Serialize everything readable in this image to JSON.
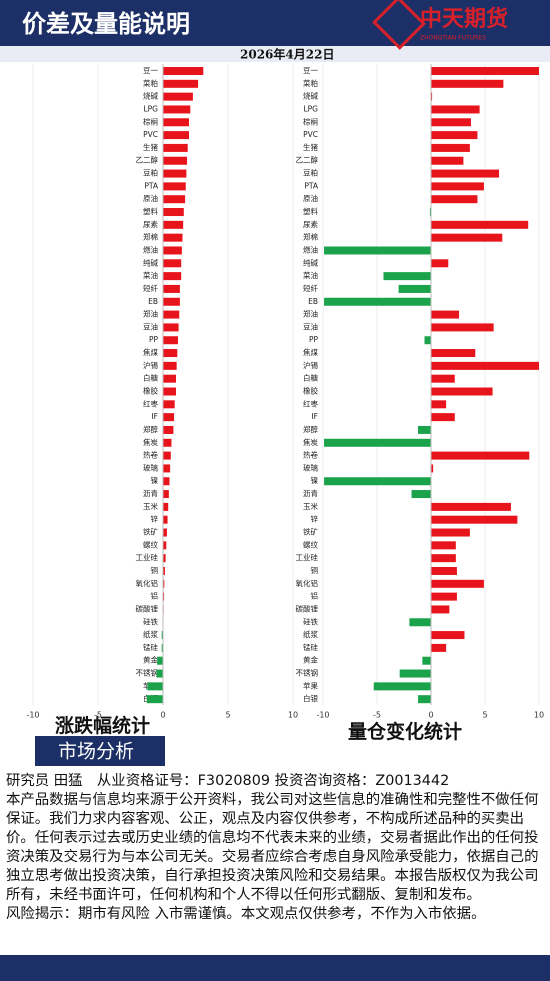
{
  "header": {
    "title": "价差及量能说明",
    "logo": "中天期货",
    "logo_en": "ZHONGTIAN FUTURES",
    "date": "2026年4月22日"
  },
  "chart_data": [
    {
      "type": "hbar",
      "title": "涨跌幅统计",
      "positive_color": "#e8141b",
      "negative_color": "#1aa34a",
      "xlim": [
        -10,
        10
      ],
      "xticks": [
        -10,
        -5,
        0,
        5,
        10
      ],
      "categories": [
        "豆一",
        "菜粕",
        "烧碱",
        "LPG",
        "棕榈",
        "PVC",
        "生猪",
        "乙二醇",
        "豆粕",
        "PTA",
        "原油",
        "塑料",
        "尿素",
        "郑棉",
        "燃油",
        "纯碱",
        "菜油",
        "短纤",
        "EB",
        "郑油",
        "豆油",
        "PP",
        "焦煤",
        "沪锡",
        "白糖",
        "橡胶",
        "红枣",
        "IF",
        "郑醇",
        "焦炭",
        "热卷",
        "玻璃",
        "镍",
        "沥青",
        "玉米",
        "锌",
        "铁矿",
        "螺纹",
        "工业硅",
        "铜",
        "氧化铝",
        "铝",
        "碳酸锂",
        "硅铁",
        "纸浆",
        "锰硅",
        "黄金",
        "不锈钢",
        "苹果",
        "白银"
      ],
      "values": [
        3.1,
        2.7,
        2.3,
        2.1,
        2.0,
        2.0,
        1.9,
        1.85,
        1.8,
        1.75,
        1.7,
        1.6,
        1.55,
        1.5,
        1.45,
        1.4,
        1.4,
        1.3,
        1.3,
        1.25,
        1.2,
        1.15,
        1.1,
        1.05,
        1.0,
        1.0,
        0.9,
        0.85,
        0.8,
        0.65,
        0.6,
        0.55,
        0.5,
        0.45,
        0.4,
        0.35,
        0.3,
        0.25,
        0.2,
        0.15,
        0.1,
        0.08,
        0.05,
        -0.02,
        -0.1,
        -0.1,
        -0.45,
        -0.5,
        -1.2,
        -1.25
      ]
    },
    {
      "type": "hbar",
      "title": "量仓变化统计",
      "positive_color": "#e8141b",
      "negative_color": "#1aa34a",
      "xlim": [
        -10,
        10
      ],
      "xticks": [
        -10,
        -5,
        0,
        5,
        10
      ],
      "categories": [
        "豆一",
        "菜粕",
        "烧碱",
        "LPG",
        "棕榈",
        "PVC",
        "生猪",
        "乙二醇",
        "豆粕",
        "PTA",
        "原油",
        "塑料",
        "尿素",
        "郑棉",
        "燃油",
        "纯碱",
        "菜油",
        "短纤",
        "EB",
        "郑油",
        "豆油",
        "PP",
        "焦煤",
        "沪锡",
        "白糖",
        "橡胶",
        "红枣",
        "IF",
        "郑醇",
        "焦炭",
        "热卷",
        "玻璃",
        "镍",
        "沥青",
        "玉米",
        "锌",
        "铁矿",
        "螺纹",
        "工业硅",
        "铜",
        "氧化铝",
        "铝",
        "碳酸锂",
        "硅铁",
        "纸浆",
        "锰硅",
        "黄金",
        "不锈钢",
        "苹果",
        "白银"
      ],
      "values": [
        10,
        6.7,
        0.1,
        4.5,
        3.7,
        4.3,
        3.6,
        3.0,
        6.3,
        4.9,
        4.3,
        -0.1,
        9.0,
        6.6,
        -9.9,
        1.6,
        -4.4,
        -3.0,
        -9.9,
        2.6,
        5.8,
        -0.6,
        4.1,
        10,
        2.2,
        5.7,
        1.4,
        2.2,
        -1.2,
        -9.9,
        9.1,
        0.2,
        -9.9,
        -1.8,
        7.4,
        8.0,
        3.6,
        2.3,
        2.3,
        2.4,
        4.9,
        2.4,
        1.7,
        -2.0,
        3.1,
        1.4,
        -0.8,
        -2.9,
        -5.3,
        -1.2
      ]
    }
  ],
  "footer": {
    "section": "市场分析",
    "lines": [
      "研究员 田猛　从业资格证号：F3020809 投资咨询资格：Z0013442",
      "本产品数据与信息均来源于公开资料，我公司对这些信息的准确性和完整性不做任何保证。我们力求内容客观、公正，观点及内容仅供参考，不构成所述品种的买卖出价。任何表示过去或历史业绩的信息均不代表未来的业绩，交易者据此作出的任何投资决策及交易行为与本公司无关。交易者应综合考虑自身风险承受能力，依据自己的独立思考做出投资决策，自行承担投资决策风险和交易结果。本报告版权仅为我公司所有，未经书面许可，任何机构和个人不得以任何形式翻版、复制和发布。",
      "风险揭示：期市有风险 入市需谨慎。本文观点仅供参考，不作为入市依据。"
    ]
  }
}
